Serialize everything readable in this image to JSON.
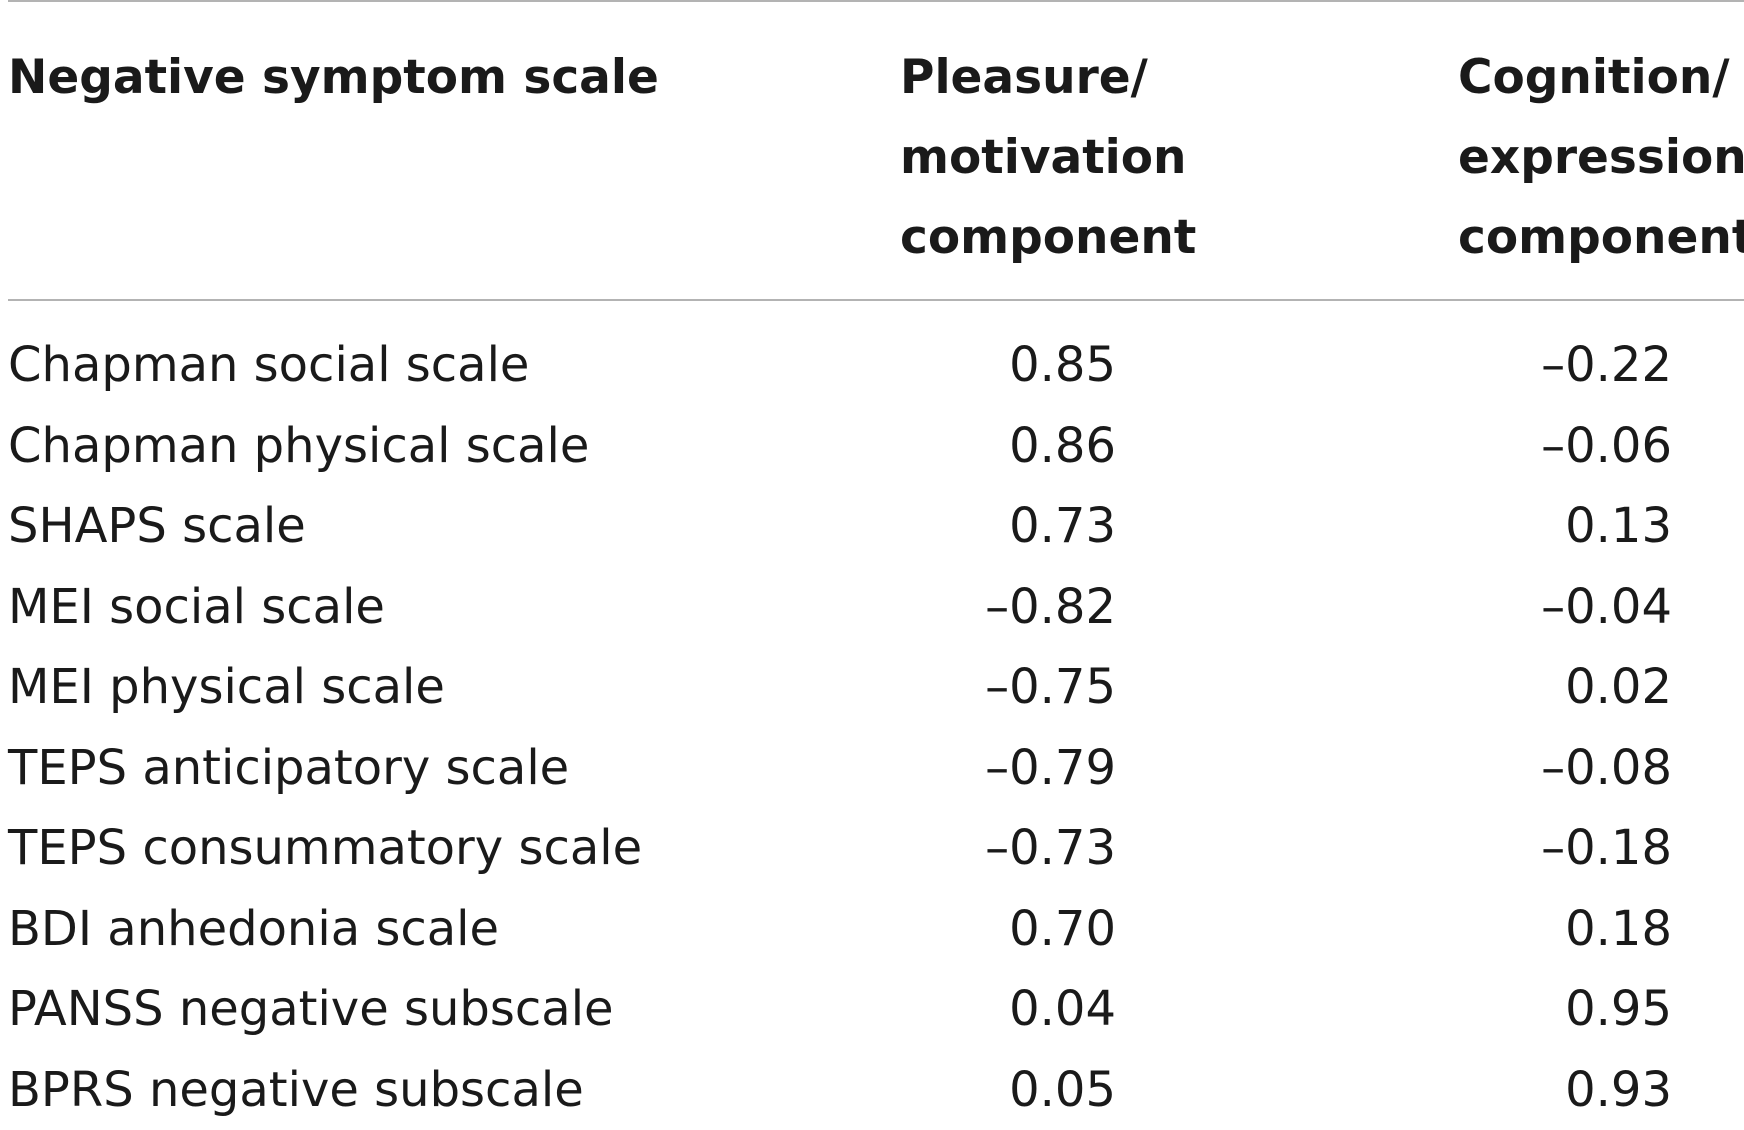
{
  "table": {
    "headers": [
      {
        "lines": [
          "Negative symptom scale"
        ]
      },
      {
        "lines": [
          "Pleasure/",
          "motivation",
          "component"
        ]
      },
      {
        "lines": [
          "Cognition/",
          "expression",
          "component"
        ]
      }
    ],
    "rows": [
      {
        "scale": "Chapman social scale",
        "pleasure_motivation": "0.85",
        "cognition_expression": "–0.22"
      },
      {
        "scale": "Chapman physical scale",
        "pleasure_motivation": "0.86",
        "cognition_expression": "–0.06"
      },
      {
        "scale": "SHAPS scale",
        "pleasure_motivation": "0.73",
        "cognition_expression": "0.13"
      },
      {
        "scale": "MEI social scale",
        "pleasure_motivation": "–0.82",
        "cognition_expression": "–0.04"
      },
      {
        "scale": "MEI physical scale",
        "pleasure_motivation": "–0.75",
        "cognition_expression": "0.02"
      },
      {
        "scale": "TEPS anticipatory scale",
        "pleasure_motivation": "–0.79",
        "cognition_expression": "–0.08"
      },
      {
        "scale": "TEPS consummatory scale",
        "pleasure_motivation": "–0.73",
        "cognition_expression": "–0.18"
      },
      {
        "scale": "BDI anhedonia scale",
        "pleasure_motivation": "0.70",
        "cognition_expression": "0.18"
      },
      {
        "scale": "PANSS negative subscale",
        "pleasure_motivation": "0.04",
        "cognition_expression": "0.95"
      },
      {
        "scale": "BPRS negative subscale",
        "pleasure_motivation": "0.05",
        "cognition_expression": "0.93"
      }
    ]
  }
}
